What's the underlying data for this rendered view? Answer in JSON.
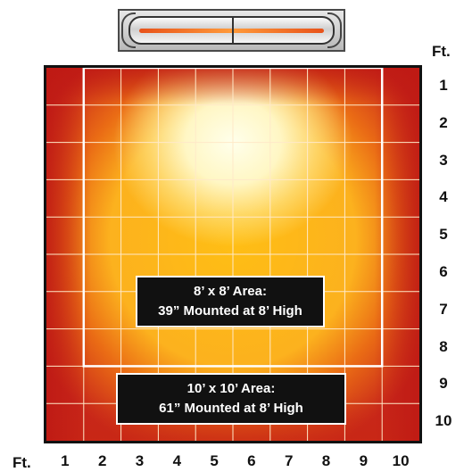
{
  "unit_label": "Ft.",
  "x_ticks": [
    "1",
    "2",
    "3",
    "4",
    "5",
    "6",
    "7",
    "8",
    "9",
    "10"
  ],
  "y_ticks": [
    "1",
    "2",
    "3",
    "4",
    "5",
    "6",
    "7",
    "8",
    "9",
    "10"
  ],
  "areas": {
    "area_8": {
      "line1": "8’ x 8’ Area:",
      "line2": "39” Mounted at 8’ High"
    },
    "area_10": {
      "line1": "10’ x 10’ Area:",
      "line2": "61” Mounted at 8’ High"
    }
  },
  "colors": {
    "hot_center": "#fffbe0",
    "warm": "#ffbe14",
    "cool_edge": "#c8261a",
    "grid": "#ffe9c8"
  }
}
